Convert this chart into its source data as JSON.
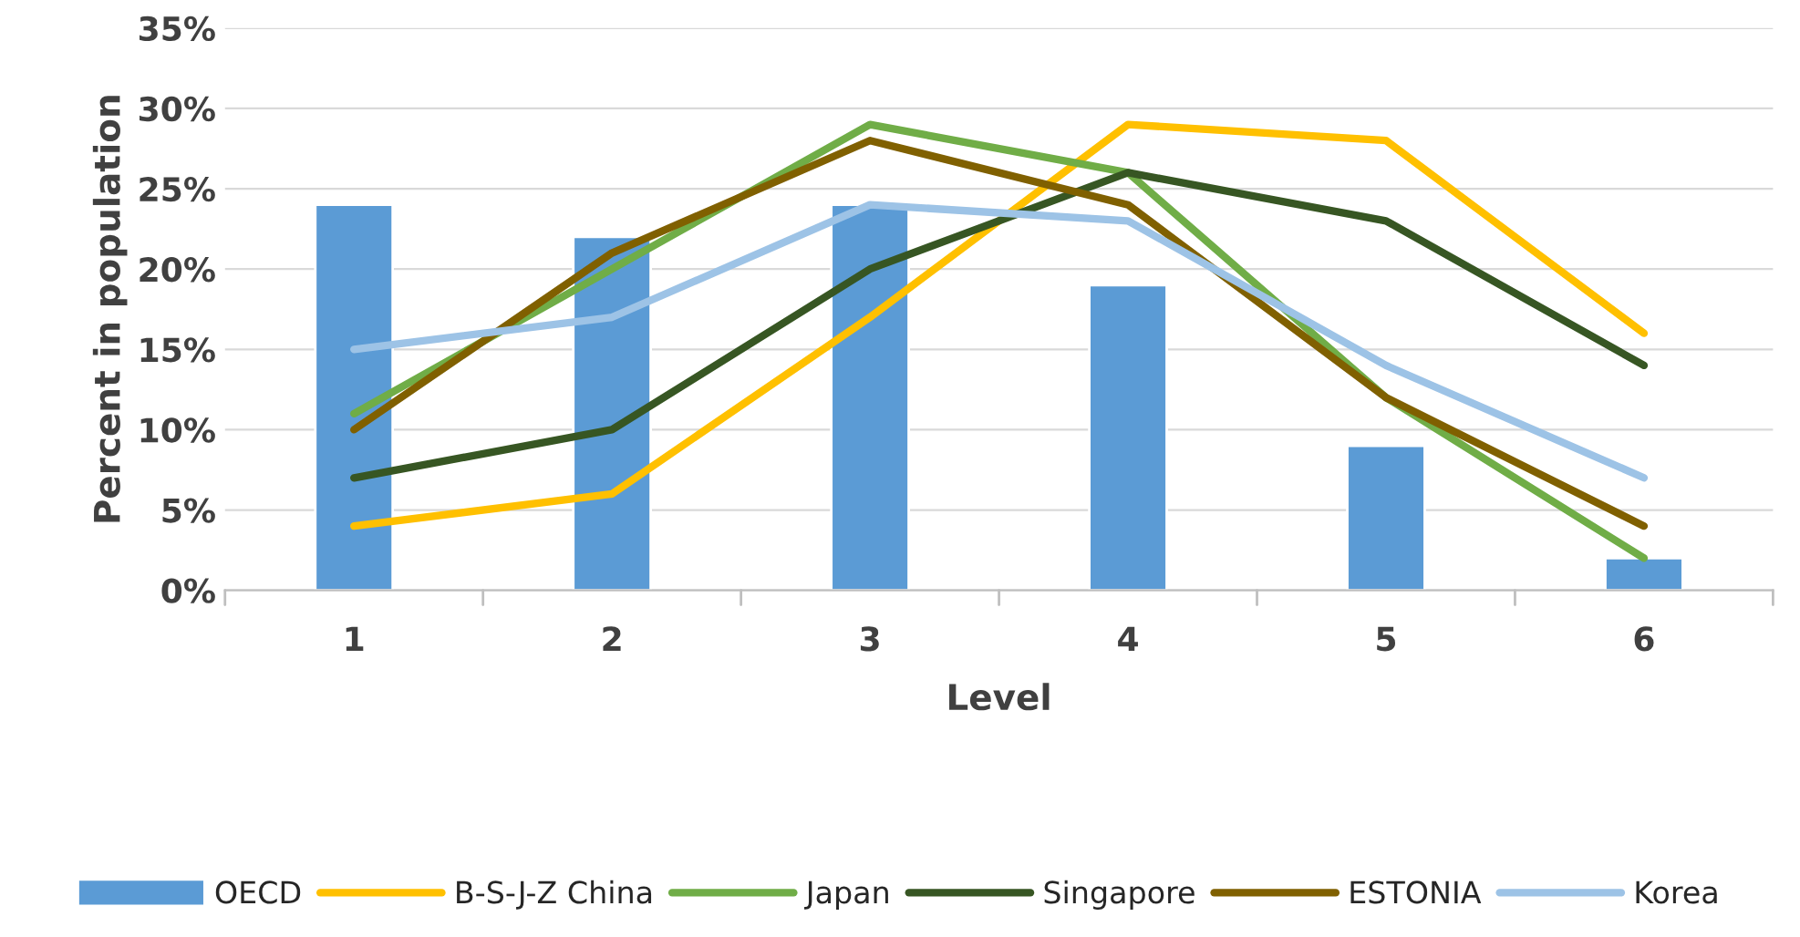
{
  "chart_data": {
    "type": "bar",
    "xlabel": "Level",
    "ylabel": "Percent in population",
    "categories": [
      "1",
      "2",
      "3",
      "4",
      "5",
      "6"
    ],
    "series": [
      {
        "name": "OECD",
        "color": "#5b9bd5",
        "values": [
          24,
          22,
          24,
          19,
          9,
          2
        ]
      },
      {
        "name": "B-S-J-Z China",
        "type": "line",
        "color": "#ffc000",
        "values": [
          4,
          6,
          17,
          29,
          28,
          16
        ]
      },
      {
        "name": "Japan",
        "type": "line",
        "color": "#70ad47",
        "values": [
          11,
          20,
          29,
          26,
          12,
          2
        ]
      },
      {
        "name": "Singapore",
        "type": "line",
        "color": "#375623",
        "values": [
          7,
          10,
          20,
          26,
          23,
          14
        ]
      },
      {
        "name": "ESTONIA",
        "type": "line",
        "color": "#806000",
        "values": [
          10,
          21,
          28,
          24,
          12,
          4
        ]
      },
      {
        "name": "Korea",
        "type": "line",
        "color": "#9dc3e6",
        "values": [
          15,
          17,
          24,
          23,
          14,
          7
        ]
      }
    ],
    "ylim": [
      0,
      35
    ],
    "yticks": [
      {
        "value": 0,
        "label": "0%"
      },
      {
        "value": 5,
        "label": "5%"
      },
      {
        "value": 10,
        "label": "10%"
      },
      {
        "value": 15,
        "label": "15%"
      },
      {
        "value": 20,
        "label": "20%"
      },
      {
        "value": 25,
        "label": "25%"
      },
      {
        "value": 30,
        "label": "30%"
      },
      {
        "value": 35,
        "label": "35%"
      }
    ],
    "grid": "y",
    "legend": "bottom",
    "marker": "none",
    "line_style": "solid"
  }
}
